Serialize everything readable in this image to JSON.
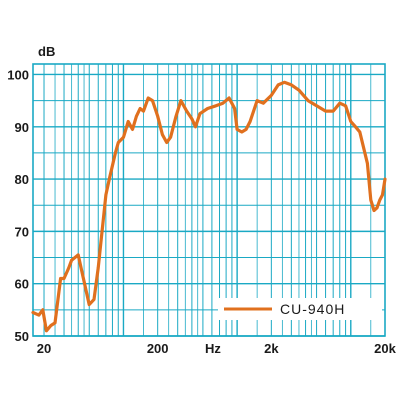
{
  "chart_data": {
    "type": "line",
    "ylabel": "dB",
    "x_unit_label": "Hz",
    "x_scale": "log",
    "xlim": [
      16,
      20000
    ],
    "ylim": [
      50,
      102
    ],
    "grid": true,
    "legend_position": "bottom-right",
    "x_tick_labels": [
      {
        "value": 20,
        "label": "20"
      },
      {
        "value": 200,
        "label": "200"
      },
      {
        "value": 2000,
        "label": "2k"
      },
      {
        "value": 20000,
        "label": "20k"
      }
    ],
    "y_tick_labels": [
      {
        "value": 50,
        "label": "50"
      },
      {
        "value": 60,
        "label": "60"
      },
      {
        "value": 70,
        "label": "70"
      },
      {
        "value": 80,
        "label": "80"
      },
      {
        "value": 90,
        "label": "90"
      },
      {
        "value": 100,
        "label": "100"
      }
    ],
    "colors": {
      "grid": "#1aa9c4",
      "line": "#e0701e",
      "background": "#ffffff"
    },
    "series": [
      {
        "name": "CU-940H",
        "color": "#e0701e",
        "points": [
          [
            16,
            54.5
          ],
          [
            18,
            54.0
          ],
          [
            19.5,
            55.0
          ],
          [
            21,
            51.0
          ],
          [
            23,
            52.0
          ],
          [
            25,
            52.5
          ],
          [
            28,
            61.0
          ],
          [
            30,
            61.0
          ],
          [
            33,
            63.0
          ],
          [
            35,
            64.5
          ],
          [
            40,
            65.5
          ],
          [
            45,
            60.5
          ],
          [
            50,
            56.0
          ],
          [
            55,
            57.0
          ],
          [
            60,
            63.0
          ],
          [
            70,
            77.0
          ],
          [
            75,
            80.0
          ],
          [
            85,
            85.0
          ],
          [
            90,
            87.0
          ],
          [
            100,
            88.0
          ],
          [
            110,
            91.0
          ],
          [
            120,
            89.5
          ],
          [
            130,
            92.0
          ],
          [
            140,
            93.5
          ],
          [
            150,
            93.0
          ],
          [
            165,
            95.5
          ],
          [
            180,
            95.0
          ],
          [
            200,
            92.0
          ],
          [
            220,
            88.5
          ],
          [
            240,
            87.0
          ],
          [
            260,
            88.0
          ],
          [
            290,
            92.0
          ],
          [
            320,
            95.0
          ],
          [
            360,
            93.0
          ],
          [
            400,
            91.5
          ],
          [
            430,
            90.0
          ],
          [
            470,
            92.5
          ],
          [
            550,
            93.5
          ],
          [
            650,
            94.0
          ],
          [
            750,
            94.5
          ],
          [
            850,
            95.5
          ],
          [
            950,
            93.5
          ],
          [
            1000,
            89.5
          ],
          [
            1100,
            89.0
          ],
          [
            1200,
            89.5
          ],
          [
            1300,
            91.0
          ],
          [
            1500,
            95.0
          ],
          [
            1700,
            94.5
          ],
          [
            2000,
            96.0
          ],
          [
            2300,
            98.0
          ],
          [
            2600,
            98.5
          ],
          [
            3000,
            98.0
          ],
          [
            3500,
            97.0
          ],
          [
            4200,
            95.0
          ],
          [
            5000,
            94.0
          ],
          [
            6000,
            93.0
          ],
          [
            7000,
            93.0
          ],
          [
            8000,
            94.5
          ],
          [
            9000,
            94.0
          ],
          [
            10000,
            91.0
          ],
          [
            11000,
            90.0
          ],
          [
            12000,
            89.0
          ],
          [
            14000,
            83.0
          ],
          [
            15000,
            76.0
          ],
          [
            16000,
            74.0
          ],
          [
            17000,
            74.5
          ],
          [
            18000,
            76.0
          ],
          [
            19000,
            77.0
          ],
          [
            20000,
            80.0
          ]
        ]
      }
    ]
  }
}
